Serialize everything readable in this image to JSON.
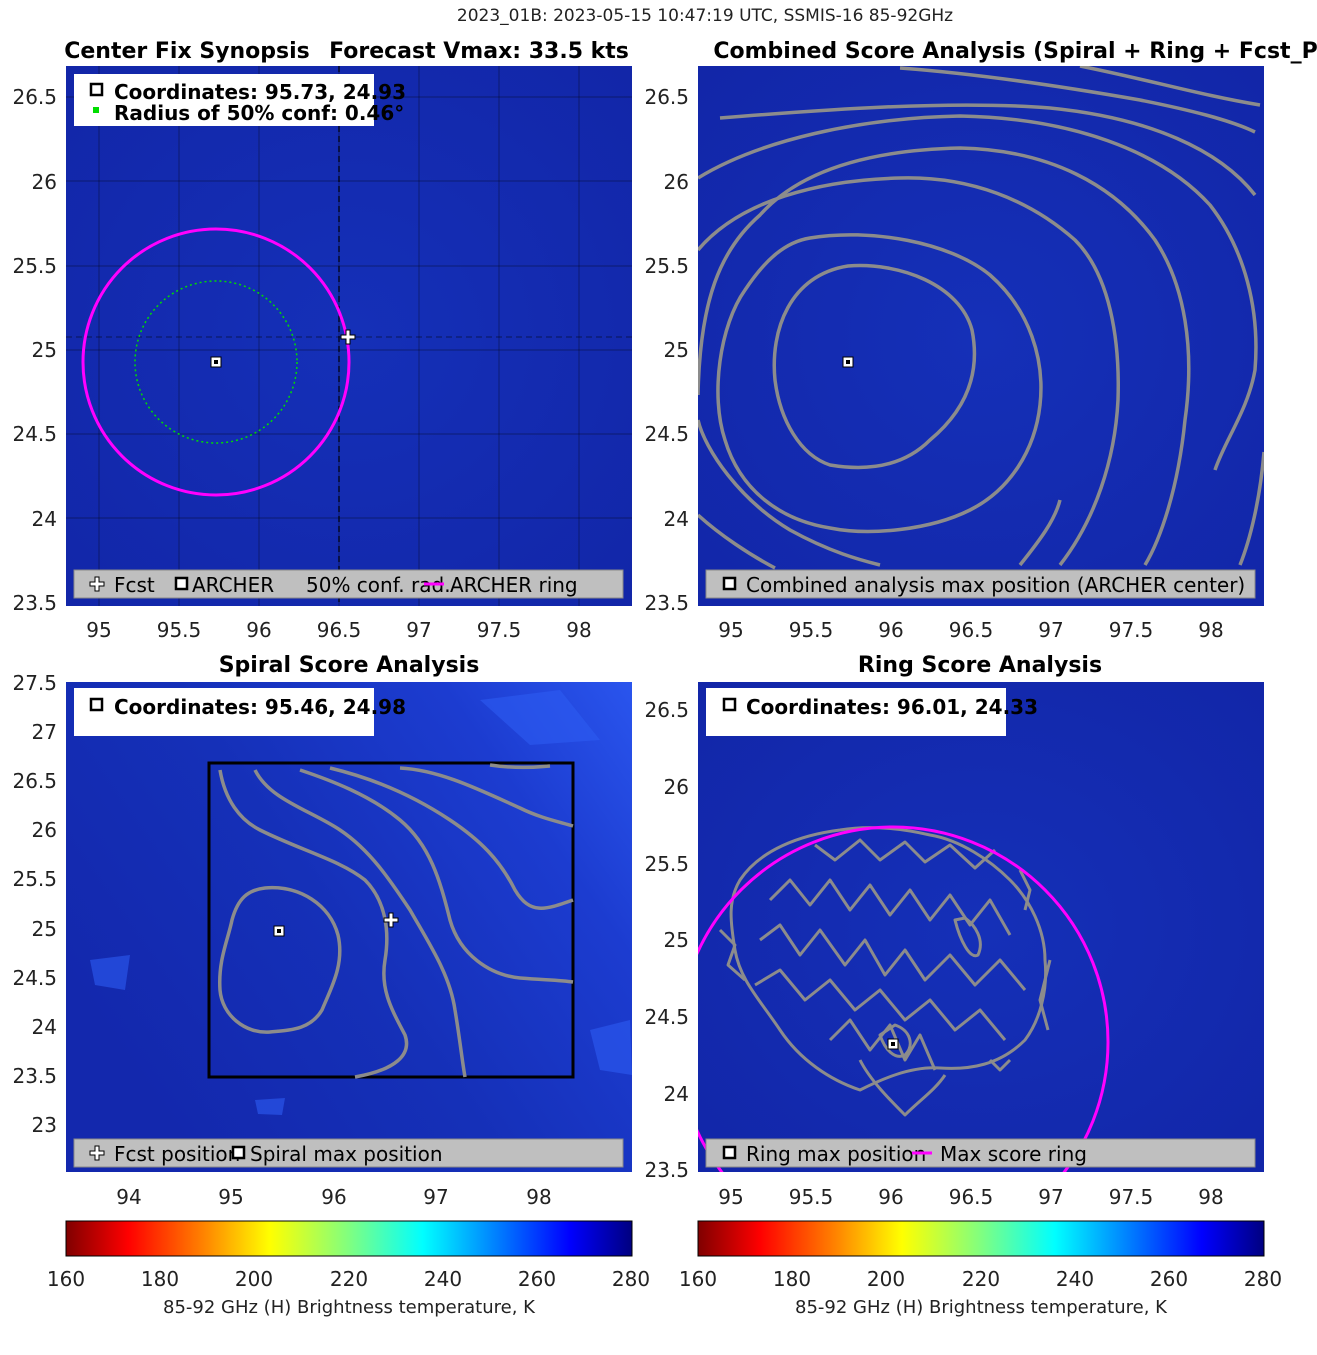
{
  "figure": {
    "suptitle": "2023_01B: 2023-05-15 10:47:19 UTC, SSMIS-16 85-92GHz",
    "colors": {
      "ocean_blue": "#1428b4",
      "ring": "#ff00ff",
      "conf_circle": "#00dd00",
      "contour": "#8c8c8c",
      "legend_bg": "#bfbfbf"
    }
  },
  "panels": {
    "synopsis": {
      "title_left": "Center Fix Synopsis",
      "title_right": "Forecast Vmax: 33.5 kts",
      "info_line1": "Coordinates: 95.73, 24.93",
      "info_line2": "Radius of 50% conf: 0.46°",
      "legend": [
        "Fcst",
        "ARCHER",
        "50% conf. rad.",
        "ARCHER ring"
      ],
      "x_ticks": [
        "95",
        "95.5",
        "96",
        "96.5",
        "97",
        "97.5",
        "98"
      ],
      "y_ticks": [
        "26.5",
        "26",
        "25.5",
        "25",
        "24.5",
        "24",
        "23.5"
      ]
    },
    "combined": {
      "title": "Combined Score Analysis (Spiral + Ring + Fcst_Pe",
      "legend": [
        "Combined analysis max position (ARCHER center)"
      ],
      "x_ticks": [
        "95",
        "95.5",
        "96",
        "96.5",
        "97",
        "97.5",
        "98"
      ],
      "y_ticks": [
        "26.5",
        "26",
        "25.5",
        "25",
        "24.5",
        "24",
        "23.5"
      ]
    },
    "spiral": {
      "title": "Spiral Score Analysis",
      "info_line1": "Coordinates: 95.46, 24.98",
      "legend": [
        "Fcst position",
        "Spiral max position"
      ],
      "x_ticks": [
        "94",
        "95",
        "96",
        "97",
        "98"
      ],
      "y_ticks": [
        "27.5",
        "27",
        "26.5",
        "26",
        "25.5",
        "25",
        "24.5",
        "24",
        "23.5",
        "23"
      ]
    },
    "ring": {
      "title": "Ring Score Analysis",
      "info_line1": "Coordinates: 96.01, 24.33",
      "legend": [
        "Ring max position",
        "Max score ring"
      ],
      "x_ticks": [
        "95",
        "95.5",
        "96",
        "96.5",
        "97",
        "97.5",
        "98"
      ],
      "y_ticks": [
        "26.5",
        "26",
        "25.5",
        "25",
        "24.5",
        "24",
        "23.5"
      ]
    }
  },
  "colorbars": [
    {
      "ticks": [
        "160",
        "180",
        "200",
        "220",
        "240",
        "260",
        "280"
      ],
      "label": "85-92 GHz (H) Brightness temperature, K"
    },
    {
      "ticks": [
        "160",
        "180",
        "200",
        "220",
        "240",
        "260",
        "280"
      ],
      "label": "85-92 GHz (H) Brightness temperature, K"
    }
  ],
  "chart_data": [
    {
      "type": "heatmap",
      "title": "Center Fix Synopsis",
      "subtitle": "Forecast Vmax: 33.5 kts",
      "xlim": [
        94.8,
        98.35
      ],
      "ylim": [
        23.5,
        26.7
      ],
      "colorbar": {
        "min": 160,
        "max": 280,
        "unit": "K"
      },
      "fcst_position": {
        "lon": 96.55,
        "lat": 25.08
      },
      "archer_center": {
        "lon": 95.73,
        "lat": 24.93
      },
      "conf_radius_deg": 0.46,
      "archer_ring": {
        "center_lon": 95.73,
        "center_lat": 24.93,
        "radius_deg": 0.75
      },
      "grid": true
    },
    {
      "type": "heatmap",
      "title": "Combined Score Analysis (Spiral + Ring + Fcst_Pe",
      "xlim": [
        94.8,
        98.35
      ],
      "ylim": [
        23.5,
        26.7
      ],
      "max_position": {
        "lon": 95.73,
        "lat": 24.93
      },
      "contours": "combined score (grey)"
    },
    {
      "type": "heatmap",
      "title": "Spiral Score Analysis",
      "xlim": [
        93.4,
        98.9
      ],
      "ylim": [
        22.6,
        27.5
      ],
      "fcst_position": {
        "lon": 96.55,
        "lat": 25.08
      },
      "spiral_max": {
        "lon": 95.46,
        "lat": 24.98
      },
      "search_box": {
        "lon": [
          94.8,
          98.35
        ],
        "lat": [
          23.5,
          26.7
        ]
      }
    },
    {
      "type": "heatmap",
      "title": "Ring Score Analysis",
      "xlim": [
        94.8,
        98.35
      ],
      "ylim": [
        23.5,
        26.7
      ],
      "ring_max": {
        "lon": 96.01,
        "lat": 24.33
      },
      "max_score_ring": {
        "center_lon": 96.01,
        "center_lat": 24.33,
        "radius_deg": 1.4
      }
    }
  ]
}
